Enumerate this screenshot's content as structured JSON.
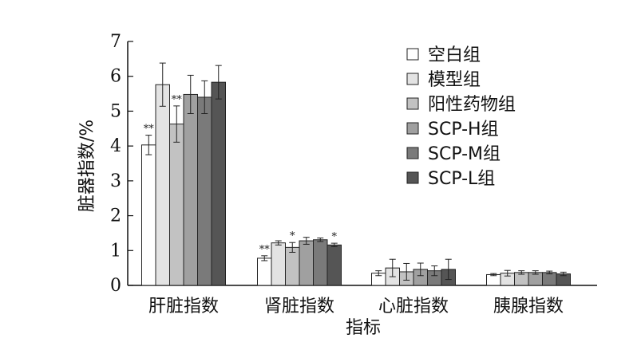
{
  "chart_data": {
    "type": "bar",
    "xlabel": "指标",
    "ylabel": "脏器指数/%",
    "ylim": [
      0,
      7
    ],
    "yticks": [
      0,
      1,
      2,
      3,
      4,
      5,
      6,
      7
    ],
    "categories": [
      "肝脏指数",
      "肾脏指数",
      "心脏指数",
      "胰腺指数"
    ],
    "legend_position": "top-right",
    "series": [
      {
        "name": "空白组",
        "color": "#ffffff",
        "values": [
          4.03,
          0.78,
          0.35,
          0.31
        ],
        "errors": [
          0.28,
          0.07,
          0.07,
          0.03
        ],
        "sig": [
          "**",
          "**",
          "",
          ""
        ]
      },
      {
        "name": "模型组",
        "color": "#e3e3e3",
        "values": [
          5.76,
          1.22,
          0.5,
          0.35
        ],
        "errors": [
          0.62,
          0.06,
          0.25,
          0.08
        ],
        "sig": [
          "",
          "",
          "",
          ""
        ]
      },
      {
        "name": "阳性药物组",
        "color": "#c2c2c2",
        "values": [
          4.63,
          1.09,
          0.39,
          0.37
        ],
        "errors": [
          0.52,
          0.14,
          0.24,
          0.05
        ],
        "sig": [
          "**",
          "*",
          "",
          ""
        ]
      },
      {
        "name": "SCP-H组",
        "color": "#a0a0a0",
        "values": [
          5.48,
          1.28,
          0.46,
          0.37
        ],
        "errors": [
          0.55,
          0.1,
          0.18,
          0.05
        ],
        "sig": [
          "",
          "",
          "",
          ""
        ]
      },
      {
        "name": "SCP-M组",
        "color": "#7a7a7a",
        "values": [
          5.4,
          1.31,
          0.42,
          0.37
        ],
        "errors": [
          0.47,
          0.05,
          0.14,
          0.04
        ],
        "sig": [
          "",
          "",
          "",
          ""
        ]
      },
      {
        "name": "SCP-L组",
        "color": "#555555",
        "values": [
          5.83,
          1.16,
          0.46,
          0.33
        ],
        "errors": [
          0.48,
          0.05,
          0.29,
          0.05
        ],
        "sig": [
          "",
          "*",
          "",
          ""
        ]
      }
    ]
  }
}
